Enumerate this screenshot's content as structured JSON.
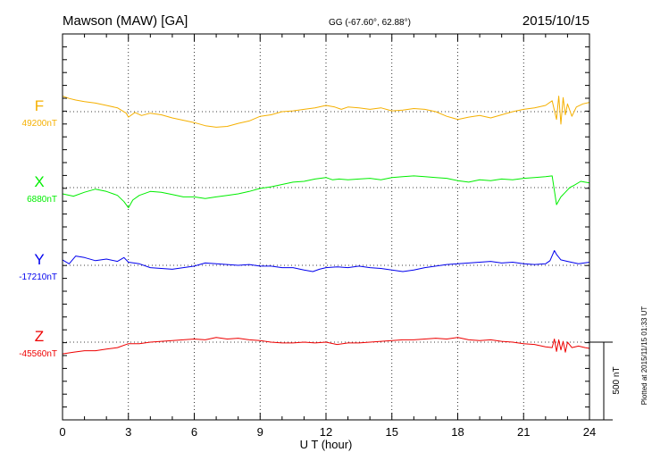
{
  "header": {
    "station": "Mawson (MAW)  [GA]",
    "coords": "GG (-67.60°,  62.88°)",
    "date": "2015/10/15"
  },
  "side_note": "Plotted at 2015/11/15 01:33 UT",
  "scale_bar_label": "500 nT",
  "chart_data": {
    "type": "line",
    "xlabel": "U T (hour)",
    "xlim": [
      0,
      24
    ],
    "xticks": [
      0,
      3,
      6,
      9,
      12,
      15,
      18,
      21,
      24
    ],
    "grid": true,
    "scale_bar_nT": 500,
    "series": [
      {
        "name": "F",
        "baseline_label": "49200nT",
        "baseline_nT": 49200,
        "color": "#f5b000",
        "points": [
          [
            0,
            49300
          ],
          [
            0.3,
            49285
          ],
          [
            0.6,
            49275
          ],
          [
            1.0,
            49265
          ],
          [
            1.5,
            49255
          ],
          [
            2.0,
            49240
          ],
          [
            2.5,
            49225
          ],
          [
            2.9,
            49190
          ],
          [
            3.0,
            49165
          ],
          [
            3.3,
            49195
          ],
          [
            3.6,
            49175
          ],
          [
            4.0,
            49190
          ],
          [
            4.5,
            49180
          ],
          [
            5.0,
            49160
          ],
          [
            5.5,
            49145
          ],
          [
            6.0,
            49130
          ],
          [
            6.5,
            49110
          ],
          [
            7.0,
            49100
          ],
          [
            7.5,
            49105
          ],
          [
            8.0,
            49125
          ],
          [
            8.5,
            49140
          ],
          [
            9.0,
            49170
          ],
          [
            9.5,
            49180
          ],
          [
            10.0,
            49200
          ],
          [
            10.5,
            49205
          ],
          [
            11.0,
            49215
          ],
          [
            11.5,
            49225
          ],
          [
            12.0,
            49240
          ],
          [
            12.4,
            49230
          ],
          [
            12.7,
            49215
          ],
          [
            13.0,
            49230
          ],
          [
            13.5,
            49225
          ],
          [
            14.0,
            49215
          ],
          [
            14.5,
            49225
          ],
          [
            15.0,
            49205
          ],
          [
            15.5,
            49210
          ],
          [
            16.0,
            49220
          ],
          [
            16.5,
            49215
          ],
          [
            17.0,
            49200
          ],
          [
            17.5,
            49170
          ],
          [
            18.0,
            49150
          ],
          [
            18.5,
            49165
          ],
          [
            19.0,
            49175
          ],
          [
            19.5,
            49160
          ],
          [
            20.0,
            49180
          ],
          [
            20.5,
            49200
          ],
          [
            21.0,
            49215
          ],
          [
            21.5,
            49225
          ],
          [
            22.0,
            49240
          ],
          [
            22.3,
            49270
          ],
          [
            22.5,
            49150
          ],
          [
            22.6,
            49300
          ],
          [
            22.7,
            49120
          ],
          [
            22.8,
            49290
          ],
          [
            22.9,
            49180
          ],
          [
            23.0,
            49250
          ],
          [
            23.2,
            49170
          ],
          [
            23.4,
            49230
          ],
          [
            23.7,
            49250
          ],
          [
            24.0,
            49260
          ]
        ]
      },
      {
        "name": "X",
        "baseline_label": "6880nT",
        "baseline_nT": 6880,
        "color": "#00ee00",
        "points": [
          [
            0,
            6840
          ],
          [
            0.5,
            6825
          ],
          [
            1.0,
            6850
          ],
          [
            1.5,
            6870
          ],
          [
            2.0,
            6855
          ],
          [
            2.5,
            6830
          ],
          [
            2.8,
            6790
          ],
          [
            3.0,
            6750
          ],
          [
            3.2,
            6800
          ],
          [
            3.5,
            6830
          ],
          [
            4.0,
            6855
          ],
          [
            4.5,
            6850
          ],
          [
            5.0,
            6835
          ],
          [
            5.5,
            6820
          ],
          [
            6.0,
            6820
          ],
          [
            6.5,
            6810
          ],
          [
            7.0,
            6820
          ],
          [
            7.5,
            6830
          ],
          [
            8.0,
            6840
          ],
          [
            8.5,
            6855
          ],
          [
            9.0,
            6875
          ],
          [
            9.5,
            6885
          ],
          [
            10.0,
            6900
          ],
          [
            10.5,
            6915
          ],
          [
            11.0,
            6920
          ],
          [
            11.5,
            6935
          ],
          [
            12.0,
            6945
          ],
          [
            12.3,
            6930
          ],
          [
            12.6,
            6935
          ],
          [
            13.0,
            6930
          ],
          [
            13.5,
            6935
          ],
          [
            14.0,
            6940
          ],
          [
            14.5,
            6930
          ],
          [
            15.0,
            6945
          ],
          [
            15.5,
            6950
          ],
          [
            16.0,
            6955
          ],
          [
            16.5,
            6950
          ],
          [
            17.0,
            6945
          ],
          [
            17.5,
            6940
          ],
          [
            18.0,
            6925
          ],
          [
            18.5,
            6915
          ],
          [
            19.0,
            6930
          ],
          [
            19.5,
            6925
          ],
          [
            20.0,
            6935
          ],
          [
            20.5,
            6930
          ],
          [
            21.0,
            6940
          ],
          [
            21.5,
            6945
          ],
          [
            22.0,
            6950
          ],
          [
            22.3,
            6955
          ],
          [
            22.5,
            6770
          ],
          [
            22.7,
            6820
          ],
          [
            22.9,
            6850
          ],
          [
            23.1,
            6880
          ],
          [
            23.3,
            6895
          ],
          [
            23.6,
            6920
          ],
          [
            24.0,
            6910
          ]
        ]
      },
      {
        "name": "Y",
        "baseline_label": "-17210nT",
        "baseline_nT": -17210,
        "color": "#0000ee",
        "points": [
          [
            0,
            -17175
          ],
          [
            0.3,
            -17200
          ],
          [
            0.6,
            -17150
          ],
          [
            1.0,
            -17160
          ],
          [
            1.5,
            -17180
          ],
          [
            2.0,
            -17170
          ],
          [
            2.5,
            -17185
          ],
          [
            2.8,
            -17160
          ],
          [
            3.0,
            -17190
          ],
          [
            3.5,
            -17200
          ],
          [
            4.0,
            -17225
          ],
          [
            4.5,
            -17230
          ],
          [
            5.0,
            -17235
          ],
          [
            5.5,
            -17225
          ],
          [
            6.0,
            -17215
          ],
          [
            6.5,
            -17195
          ],
          [
            7.0,
            -17200
          ],
          [
            7.5,
            -17205
          ],
          [
            8.0,
            -17210
          ],
          [
            8.5,
            -17205
          ],
          [
            9.0,
            -17215
          ],
          [
            9.5,
            -17215
          ],
          [
            10.0,
            -17225
          ],
          [
            10.5,
            -17225
          ],
          [
            11.0,
            -17240
          ],
          [
            11.4,
            -17250
          ],
          [
            11.7,
            -17235
          ],
          [
            12.0,
            -17225
          ],
          [
            12.5,
            -17220
          ],
          [
            13.0,
            -17225
          ],
          [
            13.5,
            -17215
          ],
          [
            14.0,
            -17225
          ],
          [
            14.5,
            -17230
          ],
          [
            15.0,
            -17240
          ],
          [
            15.5,
            -17250
          ],
          [
            16.0,
            -17240
          ],
          [
            16.5,
            -17225
          ],
          [
            17.0,
            -17215
          ],
          [
            17.5,
            -17205
          ],
          [
            18.0,
            -17200
          ],
          [
            18.5,
            -17195
          ],
          [
            19.0,
            -17190
          ],
          [
            19.5,
            -17185
          ],
          [
            20.0,
            -17195
          ],
          [
            20.5,
            -17190
          ],
          [
            21.0,
            -17200
          ],
          [
            21.5,
            -17205
          ],
          [
            22.0,
            -17200
          ],
          [
            22.2,
            -17180
          ],
          [
            22.4,
            -17115
          ],
          [
            22.5,
            -17140
          ],
          [
            22.7,
            -17175
          ],
          [
            23.0,
            -17185
          ],
          [
            23.5,
            -17200
          ],
          [
            24.0,
            -17190
          ]
        ]
      },
      {
        "name": "Z",
        "baseline_label": "-45560nT",
        "baseline_nT": -45560,
        "color": "#ee0000",
        "points": [
          [
            0,
            -45635
          ],
          [
            0.5,
            -45625
          ],
          [
            1.0,
            -45615
          ],
          [
            1.5,
            -45615
          ],
          [
            2.0,
            -45605
          ],
          [
            2.5,
            -45595
          ],
          [
            3.0,
            -45570
          ],
          [
            3.5,
            -45570
          ],
          [
            4.0,
            -45560
          ],
          [
            4.5,
            -45555
          ],
          [
            5.0,
            -45550
          ],
          [
            5.5,
            -45545
          ],
          [
            6.0,
            -45540
          ],
          [
            6.5,
            -45545
          ],
          [
            7.0,
            -45530
          ],
          [
            7.5,
            -45540
          ],
          [
            8.0,
            -45535
          ],
          [
            8.5,
            -45545
          ],
          [
            9.0,
            -45550
          ],
          [
            9.5,
            -45560
          ],
          [
            10.0,
            -45565
          ],
          [
            10.5,
            -45565
          ],
          [
            11.0,
            -45560
          ],
          [
            11.5,
            -45565
          ],
          [
            12.0,
            -45560
          ],
          [
            12.5,
            -45575
          ],
          [
            13.0,
            -45565
          ],
          [
            13.5,
            -45565
          ],
          [
            14.0,
            -45560
          ],
          [
            14.5,
            -45555
          ],
          [
            15.0,
            -45550
          ],
          [
            15.5,
            -45545
          ],
          [
            16.0,
            -45545
          ],
          [
            16.5,
            -45540
          ],
          [
            17.0,
            -45535
          ],
          [
            17.5,
            -45540
          ],
          [
            18.0,
            -45530
          ],
          [
            18.5,
            -45545
          ],
          [
            19.0,
            -45550
          ],
          [
            19.5,
            -45545
          ],
          [
            20.0,
            -45555
          ],
          [
            20.5,
            -45560
          ],
          [
            21.0,
            -45570
          ],
          [
            21.5,
            -45575
          ],
          [
            22.0,
            -45590
          ],
          [
            22.3,
            -45595
          ],
          [
            22.4,
            -45540
          ],
          [
            22.5,
            -45620
          ],
          [
            22.6,
            -45545
          ],
          [
            22.7,
            -45610
          ],
          [
            22.8,
            -45555
          ],
          [
            22.9,
            -45625
          ],
          [
            23.0,
            -45560
          ],
          [
            23.2,
            -45595
          ],
          [
            23.5,
            -45585
          ],
          [
            23.8,
            -45595
          ],
          [
            24.0,
            -45600
          ]
        ]
      }
    ]
  }
}
